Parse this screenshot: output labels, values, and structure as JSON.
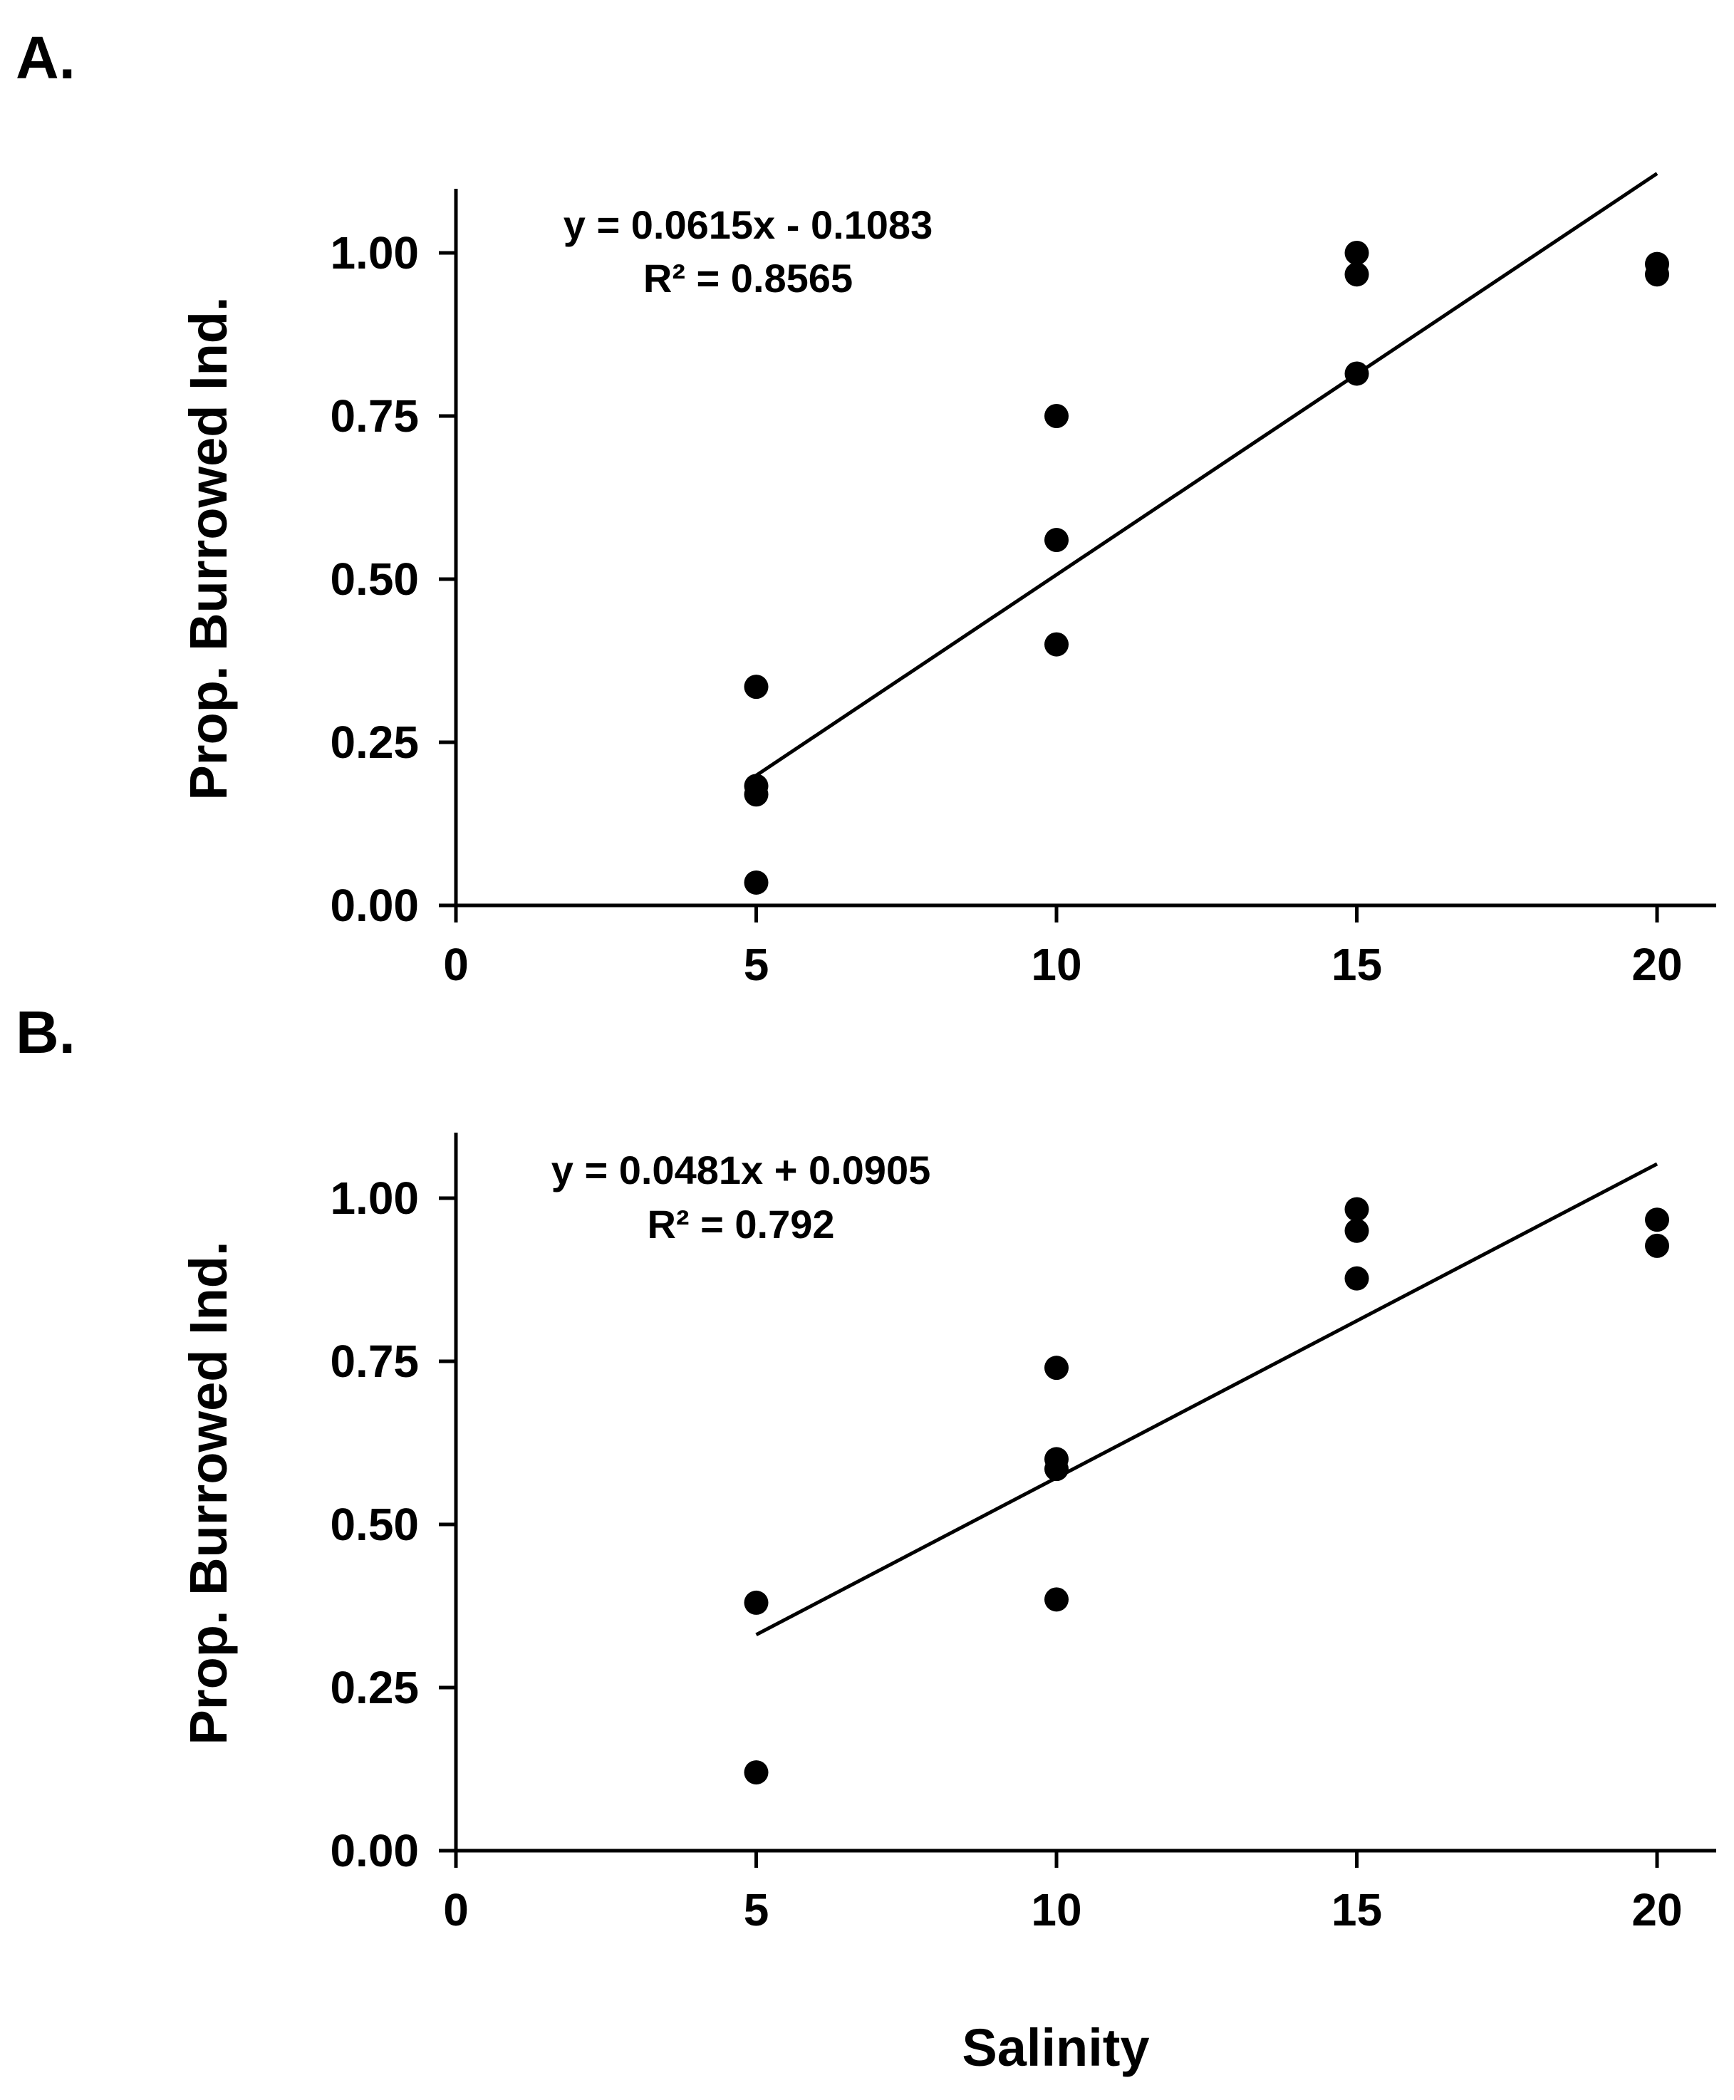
{
  "chart_data": [
    {
      "type": "scatter",
      "panel_label": "A.",
      "xlabel": "",
      "ylabel": "Prop. Burrowed Ind.",
      "xlim": [
        0,
        21
      ],
      "ylim": [
        0,
        1.1
      ],
      "xticks": [
        0,
        5,
        10,
        15,
        20
      ],
      "xtick_labels": [
        "0",
        "5",
        "10",
        "15",
        "20"
      ],
      "yticks": [
        0,
        0.25,
        0.5,
        0.75,
        1.0
      ],
      "ytick_labels": [
        "0.00",
        "0.25",
        "0.50",
        "0.75",
        "1.00"
      ],
      "points": [
        {
          "x": 5,
          "y": 0.335
        },
        {
          "x": 5,
          "y": 0.183
        },
        {
          "x": 5,
          "y": 0.17
        },
        {
          "x": 5,
          "y": 0.035
        },
        {
          "x": 10,
          "y": 0.75
        },
        {
          "x": 10,
          "y": 0.56
        },
        {
          "x": 10,
          "y": 0.4
        },
        {
          "x": 15,
          "y": 1.0
        },
        {
          "x": 15,
          "y": 0.967
        },
        {
          "x": 15,
          "y": 0.815
        },
        {
          "x": 20,
          "y": 0.983
        },
        {
          "x": 20,
          "y": 0.967
        }
      ],
      "trendline": {
        "slope": 0.0615,
        "intercept": -0.1083,
        "x_start": 5,
        "x_end": 20
      },
      "equation": "y = 0.0615x - 0.1083",
      "r2": "R² = 0.8565"
    },
    {
      "type": "scatter",
      "panel_label": "B.",
      "xlabel": "Salinity",
      "ylabel": "Prop. Burrowed Ind.",
      "xlim": [
        0,
        21
      ],
      "ylim": [
        0,
        1.1
      ],
      "xticks": [
        0,
        5,
        10,
        15,
        20
      ],
      "xtick_labels": [
        "0",
        "5",
        "10",
        "15",
        "20"
      ],
      "yticks": [
        0,
        0.25,
        0.5,
        0.75,
        1.0
      ],
      "ytick_labels": [
        "0.00",
        "0.25",
        "0.50",
        "0.75",
        "1.00"
      ],
      "points": [
        {
          "x": 5,
          "y": 0.38
        },
        {
          "x": 5,
          "y": 0.12
        },
        {
          "x": 10,
          "y": 0.74
        },
        {
          "x": 10,
          "y": 0.6
        },
        {
          "x": 10,
          "y": 0.585
        },
        {
          "x": 10,
          "y": 0.385
        },
        {
          "x": 15,
          "y": 0.983
        },
        {
          "x": 15,
          "y": 0.95
        },
        {
          "x": 15,
          "y": 0.877
        },
        {
          "x": 20,
          "y": 0.967
        },
        {
          "x": 20,
          "y": 0.927
        }
      ],
      "trendline": {
        "slope": 0.0481,
        "intercept": 0.0905,
        "x_start": 5,
        "x_end": 20
      },
      "equation": "y = 0.0481x + 0.0905",
      "r2": "R² = 0.792"
    }
  ]
}
